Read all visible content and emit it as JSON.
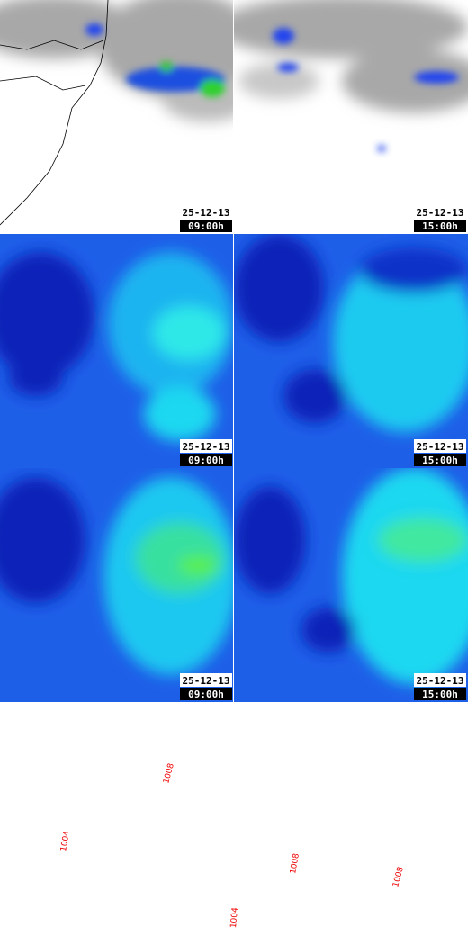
{
  "panels": [
    {
      "date": "25-12-13",
      "time": "09:00h"
    },
    {
      "date": "25-12-13",
      "time": "15:00h"
    },
    {
      "date": "25-12-13",
      "time": "09:00h"
    },
    {
      "date": "25-12-13",
      "time": "15:00h"
    },
    {
      "date": "25-12-13",
      "time": "09:00h"
    },
    {
      "date": "25-12-13",
      "time": "15:00h"
    }
  ],
  "pressure_panels": [
    {
      "contour_labels": [
        "1008",
        "1004"
      ]
    },
    {
      "contour_labels": [
        "1008",
        "1008",
        "1004"
      ]
    }
  ]
}
